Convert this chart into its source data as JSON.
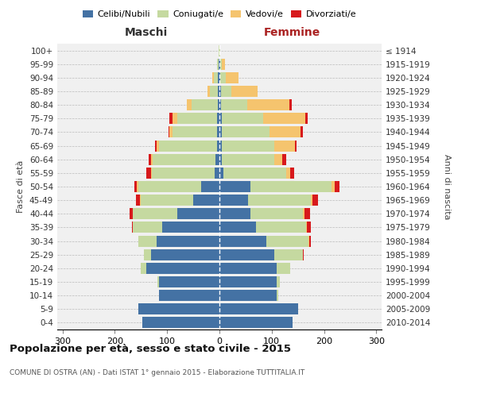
{
  "age_groups": [
    "0-4",
    "5-9",
    "10-14",
    "15-19",
    "20-24",
    "25-29",
    "30-34",
    "35-39",
    "40-44",
    "45-49",
    "50-54",
    "55-59",
    "60-64",
    "65-69",
    "70-74",
    "75-79",
    "80-84",
    "85-89",
    "90-94",
    "95-99",
    "100+"
  ],
  "birth_years": [
    "2010-2014",
    "2005-2009",
    "2000-2004",
    "1995-1999",
    "1990-1994",
    "1985-1989",
    "1980-1984",
    "1975-1979",
    "1970-1974",
    "1965-1969",
    "1960-1964",
    "1955-1959",
    "1950-1954",
    "1945-1949",
    "1940-1944",
    "1935-1939",
    "1930-1934",
    "1925-1929",
    "1920-1924",
    "1915-1919",
    "≤ 1914"
  ],
  "male": {
    "celibi": [
      148,
      155,
      115,
      115,
      140,
      130,
      120,
      110,
      80,
      50,
      35,
      9,
      7,
      5,
      5,
      5,
      3,
      3,
      3,
      1,
      0
    ],
    "coniugati": [
      0,
      0,
      0,
      3,
      10,
      15,
      35,
      55,
      85,
      100,
      120,
      120,
      120,
      110,
      85,
      75,
      50,
      15,
      8,
      3,
      1
    ],
    "vedovi": [
      0,
      0,
      0,
      0,
      0,
      0,
      0,
      0,
      1,
      2,
      3,
      2,
      3,
      5,
      5,
      10,
      10,
      5,
      3,
      0,
      0
    ],
    "divorziati": [
      0,
      0,
      0,
      0,
      0,
      0,
      0,
      2,
      5,
      7,
      5,
      9,
      5,
      3,
      3,
      5,
      0,
      0,
      0,
      0,
      0
    ]
  },
  "female": {
    "nubili": [
      140,
      150,
      110,
      110,
      110,
      105,
      90,
      70,
      60,
      55,
      60,
      7,
      5,
      5,
      5,
      4,
      3,
      3,
      2,
      2,
      0
    ],
    "coniugate": [
      0,
      0,
      2,
      5,
      25,
      55,
      80,
      95,
      100,
      120,
      155,
      120,
      100,
      100,
      90,
      80,
      50,
      20,
      10,
      3,
      1
    ],
    "vedove": [
      0,
      0,
      0,
      0,
      0,
      0,
      1,
      2,
      3,
      3,
      5,
      8,
      15,
      40,
      60,
      80,
      80,
      50,
      25,
      5,
      0
    ],
    "divorziate": [
      0,
      0,
      0,
      0,
      0,
      1,
      3,
      8,
      10,
      10,
      10,
      8,
      7,
      3,
      5,
      5,
      5,
      0,
      0,
      0,
      0
    ]
  },
  "color_celibi": "#4472a4",
  "color_coniugati": "#c5d9a0",
  "color_vedovi": "#f5c46e",
  "color_divorziati": "#d7191c",
  "bg_color": "#f0f0f0",
  "grid_color": "#cccccc",
  "title": "Popolazione per età, sesso e stato civile - 2015",
  "subtitle": "COMUNE DI OSTRA (AN) - Dati ISTAT 1° gennaio 2015 - Elaborazione TUTTITALIA.IT",
  "xlabel_left": "Maschi",
  "xlabel_right": "Femmine",
  "ylabel_left": "Fasce di età",
  "ylabel_right": "Anni di nascita",
  "xlim": 310
}
